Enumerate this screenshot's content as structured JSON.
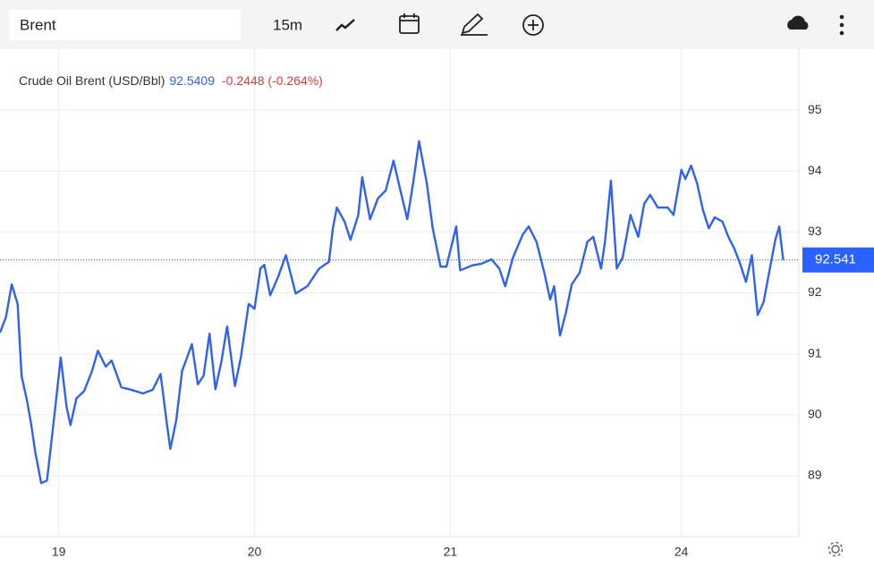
{
  "toolbar": {
    "symbol": "Brent",
    "interval": "15m"
  },
  "chart_data": {
    "type": "line",
    "series": [
      {
        "name": "Crude Oil Brent (USD/Bbl)",
        "color": "#2f62f0",
        "values": [
          91.35,
          91.6,
          92.14,
          91.82,
          90.64,
          90.2,
          89.83,
          89.39,
          88.88,
          88.92,
          89.2,
          90.06,
          90.94,
          90.13,
          89.83,
          90.27,
          90.39,
          90.72,
          91.05,
          90.79,
          90.89,
          90.45,
          90.41,
          90.35,
          90.41,
          90.67,
          89.91,
          89.44,
          89.91,
          90.72,
          90.98,
          91.16,
          90.5,
          90.64,
          91.33,
          90.42,
          90.86,
          91.45,
          90.47,
          90.94,
          91.82,
          91.74,
          92.4,
          92.46,
          91.96,
          92.26,
          92.62,
          91.99,
          92.11,
          92.4,
          92.51,
          93.06,
          93.4,
          93.17,
          92.87,
          93.28,
          93.9,
          93.21,
          93.55,
          93.68,
          94.17,
          93.75,
          93.21,
          93.8,
          94.49,
          93.8,
          93.06,
          92.43,
          92.43,
          93.09,
          92.37,
          92.45,
          92.48,
          92.55,
          92.4,
          92.11,
          92.58,
          92.96,
          93.09,
          92.84,
          92.33,
          91.89,
          92.11,
          91.3,
          91.67,
          92.14,
          92.33,
          92.84,
          92.92,
          92.4,
          92.84,
          93.84,
          92.4,
          92.58,
          93.28,
          92.92,
          93.46,
          93.61,
          93.4,
          93.4,
          93.28,
          94.02,
          93.87,
          94.09,
          93.8,
          93.36,
          93.06,
          93.24,
          93.17,
          92.92,
          92.73,
          92.48,
          92.18,
          92.62,
          91.64,
          91.85,
          92.37,
          92.87,
          93.09,
          92.54
        ]
      }
    ],
    "x": [
      0.7,
      0.73,
      0.76,
      0.79,
      0.81,
      0.84,
      0.86,
      0.88,
      0.91,
      0.94,
      0.95,
      0.98,
      1.01,
      1.04,
      1.06,
      1.09,
      1.13,
      1.17,
      1.2,
      1.24,
      1.27,
      1.32,
      1.37,
      1.43,
      1.48,
      1.52,
      1.55,
      1.57,
      1.6,
      1.63,
      1.66,
      1.68,
      1.71,
      1.74,
      1.77,
      1.8,
      1.83,
      1.86,
      1.9,
      1.93,
      1.97,
      2.0,
      2.03,
      2.05,
      2.08,
      2.12,
      2.16,
      2.21,
      2.27,
      2.33,
      2.38,
      2.4,
      2.42,
      2.46,
      2.49,
      2.53,
      2.55,
      2.59,
      2.63,
      2.67,
      2.71,
      2.74,
      2.78,
      2.81,
      2.84,
      2.88,
      2.91,
      2.95,
      2.98,
      3.03,
      3.05,
      3.11,
      3.16,
      3.21,
      3.25,
      3.28,
      3.32,
      3.37,
      3.4,
      3.44,
      3.48,
      3.51,
      3.53,
      3.56,
      3.59,
      3.62,
      3.66,
      3.7,
      3.73,
      3.77,
      3.79,
      3.82,
      3.85,
      3.88,
      3.92,
      3.96,
      3.99,
      4.02,
      4.06,
      4.11,
      4.14,
      4.18,
      4.2,
      4.23,
      4.26,
      4.29,
      4.32,
      4.35,
      4.39,
      4.42,
      4.45,
      4.48,
      4.51,
      4.54,
      4.57,
      4.6,
      4.63,
      4.66,
      4.68,
      4.7
    ],
    "xlim": [
      0.7,
      4.78
    ],
    "xticks": [
      {
        "value": 1,
        "label": "19"
      },
      {
        "value": 2,
        "label": "20"
      },
      {
        "value": 3,
        "label": "21"
      },
      {
        "value": 4.18,
        "label": "24"
      }
    ],
    "ylim": [
      88,
      96
    ],
    "yticks": [
      89,
      90,
      91,
      92,
      93,
      94,
      95
    ],
    "grid": true,
    "last_price": 92.5409,
    "change": "-0.2448 (-0.264%)",
    "last_value": 92.541,
    "last_color": "#2962ff"
  }
}
